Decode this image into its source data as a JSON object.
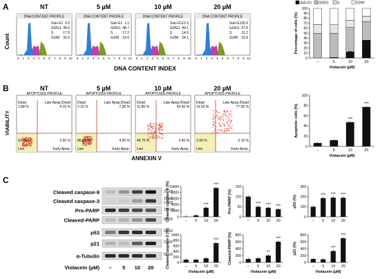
{
  "panels": {
    "a": "A",
    "b": "B",
    "c": "C"
  },
  "conditions": [
    "NT",
    "5 µM",
    "10 µM",
    "20 µM"
  ],
  "cell_cycle": {
    "profile_title": "DNA CONTENT PROFILE",
    "y_label": "Count",
    "x_label": "DNA CONTENT INDEX",
    "x_ticks": [
      "0",
      "1",
      "2",
      "3",
      "4",
      "5",
      "6",
      "7",
      "8",
      "9",
      "10"
    ],
    "row_labels": [
      "Sub-G1",
      "G0/G1",
      "S",
      "G2/M"
    ],
    "tables": [
      [
        "0.0",
        "49.5",
        "17.9",
        "32.6"
      ],
      [
        "1.1",
        "48.7",
        "17.2",
        "33.0"
      ],
      [
        "12.3",
        "49.1",
        "14.5",
        "24.1"
      ],
      [
        "35.9",
        "37.0",
        "11.2",
        "15.9"
      ]
    ]
  },
  "apoptosis": {
    "profile_title": "APOPTOSIS PROFILE",
    "y_label": "VIABILITY",
    "x_label": "ANNEXIN V",
    "quad_labels": {
      "dead": "Dead",
      "late": "Late Apop./Dead",
      "live": "Live",
      "early": "Early Apop."
    },
    "quads": [
      {
        "dead": "1.88 %",
        "late": "4.15 %",
        "live": "91.75 %",
        "early": "2.50 %"
      },
      {
        "dead": "2.15 %",
        "late": "7.30 %",
        "live": "85.65 %",
        "early": "4.90 %"
      },
      {
        "dead": "11.85 %",
        "late": "43.50 %",
        "live": "40.75 %",
        "early": "3.90 %"
      },
      {
        "dead": "19.50 %",
        "late": "77.05 %",
        "live": "3.35 %",
        "early": "0.10 %"
      }
    ]
  },
  "western": {
    "proteins": [
      "Cleaved caspase-9",
      "Cleaved caspase-3",
      "Pro-PARP",
      "Cleaved-PARP",
      "p53",
      "p21",
      "α-Tubulin"
    ],
    "kda": [
      "37 kD",
      "19 kD",
      "17 kD",
      "116 kD",
      "89 kD",
      "53 kD",
      "21 kD",
      "55 kD"
    ],
    "treatment_label": "Violacein (µM)",
    "lanes": [
      "–",
      "5",
      "10",
      "20"
    ]
  },
  "colors": {
    "bar_black": "#111111",
    "bar_gray": "#bdbdbd",
    "bar_light": "#e6e6e6",
    "scatter": "#d63a2a",
    "gate": "#c0392b",
    "live_fill": "#f3f0b8"
  },
  "chart_data": [
    {
      "type": "bar",
      "stacked": true,
      "ylabel": "Percentage of cells (%)",
      "xlabel": "Violacein (µM)",
      "categories": [
        "–",
        "5",
        "10",
        "20"
      ],
      "ylim": [
        0,
        100
      ],
      "yticks": [
        0,
        10,
        20,
        30,
        40,
        50,
        60,
        70,
        80,
        90,
        100
      ],
      "series": [
        {
          "name": "Sub-G1",
          "values": [
            0,
            1.1,
            12.3,
            35.9
          ]
        },
        {
          "name": "G0/G1",
          "values": [
            49.5,
            48.7,
            49.1,
            37.0
          ]
        },
        {
          "name": "S",
          "values": [
            17.9,
            17.2,
            14.5,
            11.2
          ]
        },
        {
          "name": "G2/M",
          "values": [
            32.6,
            33.0,
            24.1,
            15.9
          ]
        }
      ],
      "legend": "top",
      "annotations": [
        "***",
        "***"
      ]
    },
    {
      "type": "bar",
      "ylabel": "Apoptotic cells (%)",
      "xlabel": "Violacein (µM)",
      "categories": [
        "–",
        "5",
        "10",
        "20"
      ],
      "ylim": [
        0,
        100
      ],
      "yticks": [
        0,
        20,
        40,
        60,
        80,
        100
      ],
      "values": [
        6.7,
        12.2,
        47.4,
        77.2
      ],
      "annotations": [
        "",
        "",
        "***",
        "***"
      ]
    },
    {
      "type": "bar",
      "ylabel": "Cleaved caspase-9 (%)",
      "categories": [
        "–",
        "5",
        "10",
        "20"
      ],
      "ylim": [
        0,
        10000
      ],
      "yticks": [
        0,
        2000,
        4000,
        6000,
        8000,
        10000
      ],
      "values": [
        100,
        500,
        3000,
        9500
      ],
      "annotations": [
        "",
        "",
        "***",
        "***"
      ]
    },
    {
      "type": "bar",
      "ylabel": "Pro-PARP (%)",
      "categories": [
        "–",
        "5",
        "10",
        "20"
      ],
      "ylim": [
        0,
        150
      ],
      "yticks": [
        0,
        50,
        100,
        150
      ],
      "values": [
        100,
        50,
        45,
        38
      ],
      "annotations": [
        "",
        "***",
        "***",
        "***"
      ]
    },
    {
      "type": "bar",
      "ylabel": "p53 (%)",
      "categories": [
        "–",
        "5",
        "10",
        "20"
      ],
      "ylim": [
        0,
        300
      ],
      "yticks": [
        0,
        100,
        200,
        300
      ],
      "values": [
        100,
        185,
        190,
        188
      ],
      "annotations": [
        "",
        "***",
        "***",
        "***"
      ]
    },
    {
      "type": "bar",
      "ylabel": "Cleaved caspase-3 (%)",
      "xlabel": "Violacein (µM)",
      "categories": [
        "–",
        "5",
        "10",
        "20"
      ],
      "ylim": [
        0,
        1000
      ],
      "yticks": [
        0,
        200,
        400,
        600,
        800,
        1000
      ],
      "values": [
        100,
        100,
        150,
        700
      ],
      "annotations": [
        "",
        "",
        "",
        "***"
      ]
    },
    {
      "type": "bar",
      "ylabel": "Cleaved-PARP (%)",
      "xlabel": "Violacein (µM)",
      "categories": [
        "–",
        "5",
        "10",
        "20"
      ],
      "ylim": [
        0,
        800
      ],
      "yticks": [
        0,
        200,
        400,
        600,
        800
      ],
      "values": [
        100,
        120,
        200,
        600
      ],
      "annotations": [
        "",
        "",
        "**",
        "***"
      ]
    },
    {
      "type": "bar",
      "ylabel": "p21 (%)",
      "xlabel": "Violacein (µM)",
      "categories": [
        "–",
        "5",
        "10",
        "20"
      ],
      "ylim": [
        0,
        800
      ],
      "yticks": [
        0,
        200,
        400,
        600,
        800
      ],
      "values": [
        100,
        90,
        330,
        700
      ],
      "annotations": [
        "",
        "",
        "***",
        "***"
      ]
    }
  ]
}
